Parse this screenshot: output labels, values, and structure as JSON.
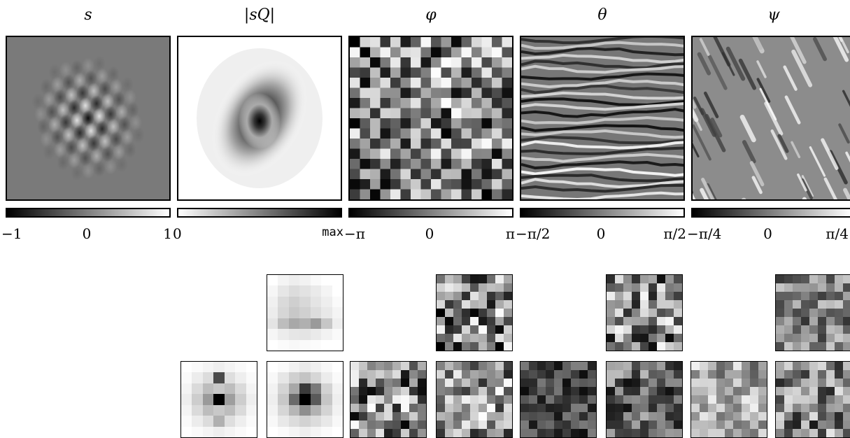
{
  "panels": [
    {
      "id": "s",
      "title": "s",
      "ticks": [
        "−1",
        "0",
        "1"
      ],
      "colorbar": "linear-gradient(to right,#000,#fff)"
    },
    {
      "id": "sq",
      "title": "|sQ|",
      "ticks": [
        "0",
        "",
        "max"
      ],
      "colorbar": "linear-gradient(to right,#fff,#000)"
    },
    {
      "id": "phi",
      "title": "φ",
      "ticks": [
        "−π",
        "0",
        "π"
      ],
      "colorbar": "linear-gradient(to right,#000,#fff)"
    },
    {
      "id": "theta",
      "title": "θ",
      "ticks": [
        "−π/2",
        "0",
        "π/2"
      ],
      "colorbar": "linear-gradient(to right,#000,#fff)"
    },
    {
      "id": "psi",
      "title": "ψ",
      "ticks": [
        "−π/4",
        "0",
        "π/4"
      ],
      "colorbar": "linear-gradient(to right,#000,#fff)"
    }
  ],
  "filter_colors": {
    "sq_top": [
      "#fff",
      "#f4f4f4",
      "#eee",
      "#f2f2f2",
      "#fafafa",
      "#fff",
      "#fff",
      "#f6f6f6",
      "#e6e6e6",
      "#dcdcdc",
      "#e2e2e2",
      "#eaeaea",
      "#f4f4f4",
      "#fff",
      "#f0f0f0",
      "#dadada",
      "#cfcfcf",
      "#d8d8d8",
      "#e4e4e4",
      "#eeeeee",
      "#fafafa",
      "#ececec",
      "#d6d6d6",
      "#c8c8c8",
      "#d0d0d0",
      "#dcdcdc",
      "#e8e8e8",
      "#f4f4f4",
      "#e4e4e4",
      "#bdbdbd",
      "#a8a8a8",
      "#b0b0b0",
      "#9a9a9a",
      "#c6c6c6",
      "#eeeeee",
      "#f6f6f6",
      "#ececec",
      "#e6e6e6",
      "#e4e4e4",
      "#eaeaea",
      "#f2f2f2",
      "#fafafa",
      "#fff",
      "#fbfbfb",
      "#f8f8f8",
      "#fafafa",
      "#fcfcfc",
      "#fff",
      "#fff"
    ],
    "sq_bl": [
      "#fff",
      "#fafafa",
      "#f4f4f4",
      "#eeeeee",
      "#f4f4f4",
      "#fafafa",
      "#fff",
      "#fafafa",
      "#ececec",
      "#dcdcdc",
      "#4a4a4a",
      "#dedede",
      "#eeeeee",
      "#fafafa",
      "#f4f4f4",
      "#dadada",
      "#bdbdbd",
      "#c8c8c8",
      "#bdbdbd",
      "#dadada",
      "#f4f4f4",
      "#eeeeee",
      "#cdcdcd",
      "#9a9a9a",
      "#000000",
      "#9e9e9e",
      "#cdcdcd",
      "#eeeeee",
      "#f4f4f4",
      "#dadada",
      "#bdbdbd",
      "#c8c8c8",
      "#bdbdbd",
      "#dadada",
      "#f4f4f4",
      "#fafafa",
      "#ececec",
      "#dcdcdc",
      "#b0b0b0",
      "#dedede",
      "#eeeeee",
      "#fafafa",
      "#fff",
      "#fafafa",
      "#f4f4f4",
      "#eeeeee",
      "#f4f4f4",
      "#fafafa",
      "#fff"
    ],
    "sq_bm": [
      "#fff",
      "#fafafa",
      "#f2f2f2",
      "#eaeaea",
      "#f0f0f0",
      "#f8f8f8",
      "#fff",
      "#f8f8f8",
      "#e6e6e6",
      "#d0d0d0",
      "#c4c4c4",
      "#d6d6d6",
      "#ececec",
      "#fafafa",
      "#f2f2f2",
      "#d4d4d4",
      "#a8a8a8",
      "#3a3a3a",
      "#7a7a7a",
      "#d2d2d2",
      "#f2f2f2",
      "#eeeeee",
      "#c8c8c8",
      "#6a6a6a",
      "#000000",
      "#5a5a5a",
      "#c6c6c6",
      "#eeeeee",
      "#f2f2f2",
      "#d6d6d6",
      "#b6b6b6",
      "#8e8e8e",
      "#b2b2b2",
      "#d4d4d4",
      "#f2f2f2",
      "#f8f8f8",
      "#e8e8e8",
      "#dcdcdc",
      "#d2d2d2",
      "#dcdcdc",
      "#e8e8e8",
      "#f8f8f8",
      "#fff",
      "#fafafa",
      "#f4f4f4",
      "#eeeeee",
      "#f4f4f4",
      "#fafafa",
      "#fff"
    ]
  }
}
